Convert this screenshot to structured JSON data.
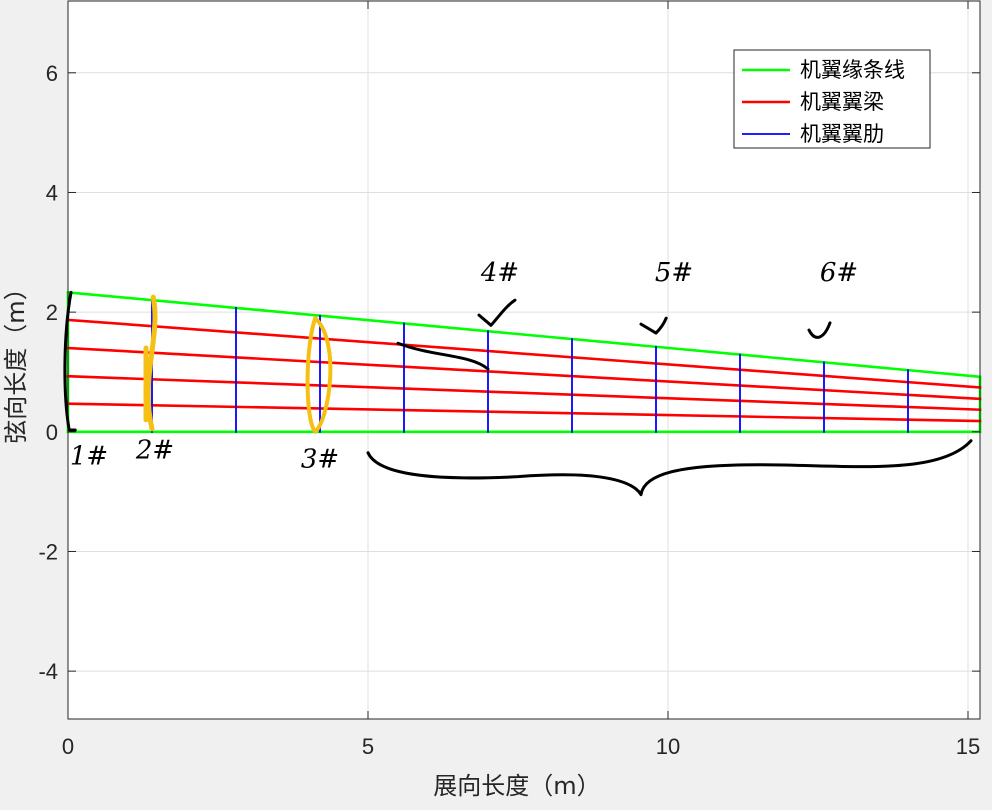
{
  "chart_data": {
    "type": "line",
    "title": "",
    "xlabel": "展向长度（m）",
    "ylabel": "弦向长度（m）",
    "xlim": [
      0,
      15.2
    ],
    "ylim": [
      -4.8,
      7.2
    ],
    "xticks": [
      0,
      5,
      10,
      15
    ],
    "yticks": [
      -4,
      -2,
      0,
      2,
      4,
      6
    ],
    "xtick_labels": [
      "0",
      "5",
      "10",
      "15"
    ],
    "ytick_labels": [
      "-4",
      "-2",
      "0",
      "2",
      "4",
      "6"
    ],
    "grid": true,
    "legend_position": "top-right",
    "series": [
      {
        "name": "机翼缘条线",
        "color": "#00ff00",
        "segments": [
          [
            [
              0,
              0
            ],
            [
              0,
              2.33
            ]
          ],
          [
            [
              0,
              2.33
            ],
            [
              15.2,
              0.92
            ]
          ],
          [
            [
              15.2,
              0.92
            ],
            [
              15.2,
              0
            ]
          ],
          [
            [
              15.2,
              0
            ],
            [
              0,
              0
            ]
          ]
        ]
      },
      {
        "name": "机翼翼梁",
        "color": "#ff0000",
        "segments": [
          [
            [
              0,
              1.87
            ],
            [
              15.2,
              0.74
            ]
          ],
          [
            [
              0,
              1.4
            ],
            [
              15.2,
              0.55
            ]
          ],
          [
            [
              0,
              0.93
            ],
            [
              15.2,
              0.37
            ]
          ],
          [
            [
              0,
              0.47
            ],
            [
              15.2,
              0.18
            ]
          ]
        ]
      },
      {
        "name": "机翼翼肋",
        "color": "#0000ff",
        "segments": [
          [
            [
              1.4,
              0
            ],
            [
              1.4,
              2.2
            ]
          ],
          [
            [
              2.8,
              0
            ],
            [
              2.8,
              2.07
            ]
          ],
          [
            [
              4.2,
              0
            ],
            [
              4.2,
              1.94
            ]
          ],
          [
            [
              5.6,
              0
            ],
            [
              5.6,
              1.81
            ]
          ],
          [
            [
              7.0,
              0
            ],
            [
              7.0,
              1.68
            ]
          ],
          [
            [
              8.4,
              0
            ],
            [
              8.4,
              1.55
            ]
          ],
          [
            [
              9.8,
              0
            ],
            [
              9.8,
              1.42
            ]
          ],
          [
            [
              11.2,
              0
            ],
            [
              11.2,
              1.29
            ]
          ],
          [
            [
              12.6,
              0
            ],
            [
              12.6,
              1.16
            ]
          ],
          [
            [
              14.0,
              0
            ],
            [
              14.0,
              1.03
            ]
          ]
        ]
      }
    ],
    "annotations": {
      "rib_labels": [
        {
          "text": "1#",
          "x": 0.35,
          "y": -0.55
        },
        {
          "text": "2#",
          "x": 1.45,
          "y": -0.45
        },
        {
          "text": "3#",
          "x": 4.2,
          "y": -0.6
        },
        {
          "text": "4#",
          "x": 7.2,
          "y": 2.52
        },
        {
          "text": "5#",
          "x": 10.1,
          "y": 2.52
        },
        {
          "text": "6#",
          "x": 12.85,
          "y": 2.52
        }
      ],
      "handwriting_colors": {
        "ink": "#000000",
        "highlight": "#f5c013"
      }
    }
  }
}
